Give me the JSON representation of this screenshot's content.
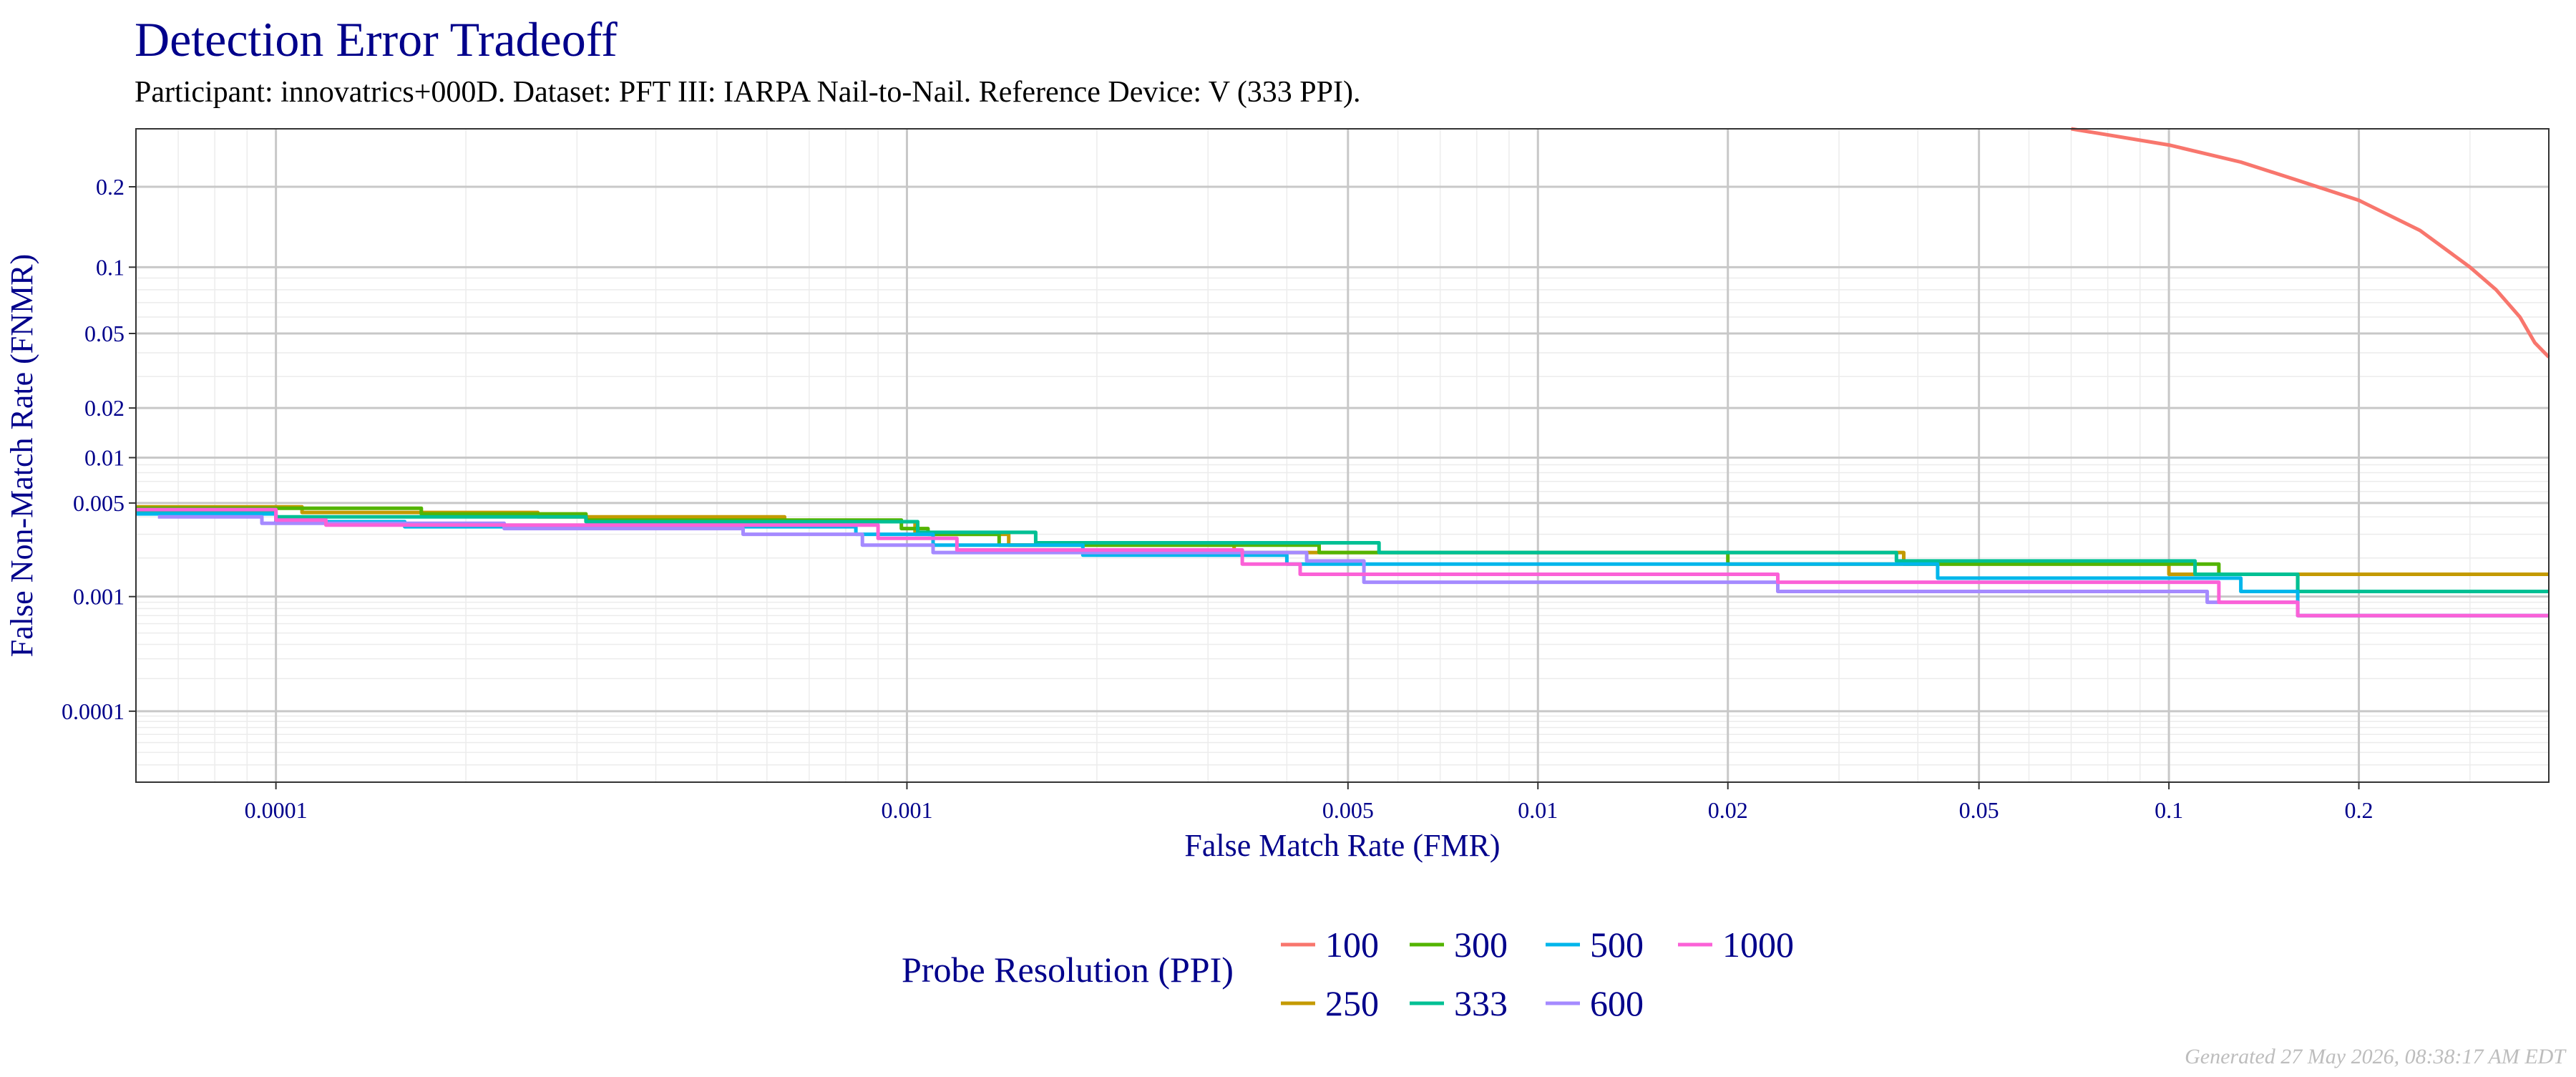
{
  "chart_data": {
    "type": "line",
    "title": "Detection Error Tradeoff",
    "subtitle": "Participant: innovatrics+000D. Dataset: PFT III: IARPA Nail-to-Nail. Reference Device: V (333 PPI).",
    "xlabel": "False Match Rate (FMR)",
    "ylabel": "False Non-Match Rate (FNMR)",
    "x_scale": "log",
    "y_scale": "probit",
    "xlim": [
      6e-05,
      0.4
    ],
    "ylim": [
      2e-05,
      0.3
    ],
    "x_ticks": [
      0.0001,
      0.001,
      0.005,
      0.01,
      0.02,
      0.05,
      0.1,
      0.2
    ],
    "x_tick_labels": [
      "0.0001",
      "0.001",
      "0.005",
      "0.01",
      "0.02",
      "0.05",
      "0.1",
      "0.2"
    ],
    "y_ticks": [
      0.0001,
      0.001,
      0.005,
      0.01,
      0.02,
      0.05,
      0.1,
      0.2
    ],
    "y_tick_labels": [
      "0.0001",
      "0.001",
      "0.005",
      "0.01",
      "0.02",
      "0.05",
      "0.1",
      "0.2"
    ],
    "grid": true,
    "legend": {
      "title": "Probe Resolution (PPI)",
      "position": "bottom",
      "order": [
        "100",
        "300",
        "500",
        "1000",
        "250",
        "333",
        "600"
      ]
    },
    "series": [
      {
        "name": "100",
        "color": "#F8766D",
        "step": false,
        "x": [
          0.07,
          0.1,
          0.13,
          0.16,
          0.2,
          0.25,
          0.3,
          0.33,
          0.36,
          0.38,
          0.4
        ],
        "y": [
          0.3,
          0.27,
          0.24,
          0.21,
          0.18,
          0.14,
          0.1,
          0.08,
          0.06,
          0.045,
          0.038
        ]
      },
      {
        "name": "250",
        "color": "#C49A00",
        "step": true,
        "x": [
          6e-05,
          0.00011,
          0.00026,
          0.00064,
          0.00103,
          0.00145,
          0.0033,
          0.038,
          0.1,
          0.4
        ],
        "y": [
          0.0047,
          0.0043,
          0.004,
          0.0037,
          0.003,
          0.0025,
          0.0022,
          0.0018,
          0.0015,
          0.0015
        ]
      },
      {
        "name": "300",
        "color": "#53B400",
        "step": true,
        "x": [
          6e-05,
          0.00017,
          0.00031,
          0.00098,
          0.00108,
          0.0014,
          0.0045,
          0.02,
          0.12,
          0.16,
          0.4
        ],
        "y": [
          0.0046,
          0.0042,
          0.0038,
          0.0033,
          0.003,
          0.0025,
          0.0022,
          0.0018,
          0.0015,
          0.0011,
          0.0011
        ]
      },
      {
        "name": "333",
        "color": "#00C094",
        "step": true,
        "x": [
          6e-05,
          0.0001,
          0.00031,
          0.00104,
          0.0016,
          0.0056,
          0.037,
          0.11,
          0.16,
          0.4
        ],
        "y": [
          0.0044,
          0.004,
          0.0037,
          0.0031,
          0.0026,
          0.0022,
          0.0019,
          0.0015,
          0.0011,
          0.0011
        ]
      },
      {
        "name": "500",
        "color": "#00B6EB",
        "step": true,
        "x": [
          6e-05,
          0.0001,
          0.00016,
          0.00083,
          0.0011,
          0.0019,
          0.004,
          0.043,
          0.13,
          0.16,
          0.4
        ],
        "y": [
          0.0042,
          0.0037,
          0.0034,
          0.003,
          0.0025,
          0.0021,
          0.0018,
          0.0014,
          0.0011,
          0.0007,
          0.0007
        ]
      },
      {
        "name": "600",
        "color": "#A58AFF",
        "step": true,
        "x": [
          6.5e-05,
          9.5e-05,
          0.00023,
          0.00055,
          0.00085,
          0.0011,
          0.0043,
          0.0053,
          0.024,
          0.115,
          0.16,
          0.4
        ],
        "y": [
          0.004,
          0.0036,
          0.0033,
          0.003,
          0.0025,
          0.0022,
          0.0019,
          0.0013,
          0.0011,
          0.0009,
          0.0007,
          0.0007
        ]
      },
      {
        "name": "1000",
        "color": "#FB61D7",
        "step": true,
        "x": [
          6e-05,
          0.0001,
          0.00012,
          0.0009,
          0.0012,
          0.0034,
          0.0042,
          0.024,
          0.12,
          0.16,
          0.4
        ],
        "y": [
          0.0045,
          0.0038,
          0.0035,
          0.0028,
          0.0023,
          0.0018,
          0.0015,
          0.0013,
          0.0009,
          0.0007,
          0.0007
        ]
      }
    ]
  },
  "footer": "Generated 27 May 2026, 08:38:17 AM EDT"
}
